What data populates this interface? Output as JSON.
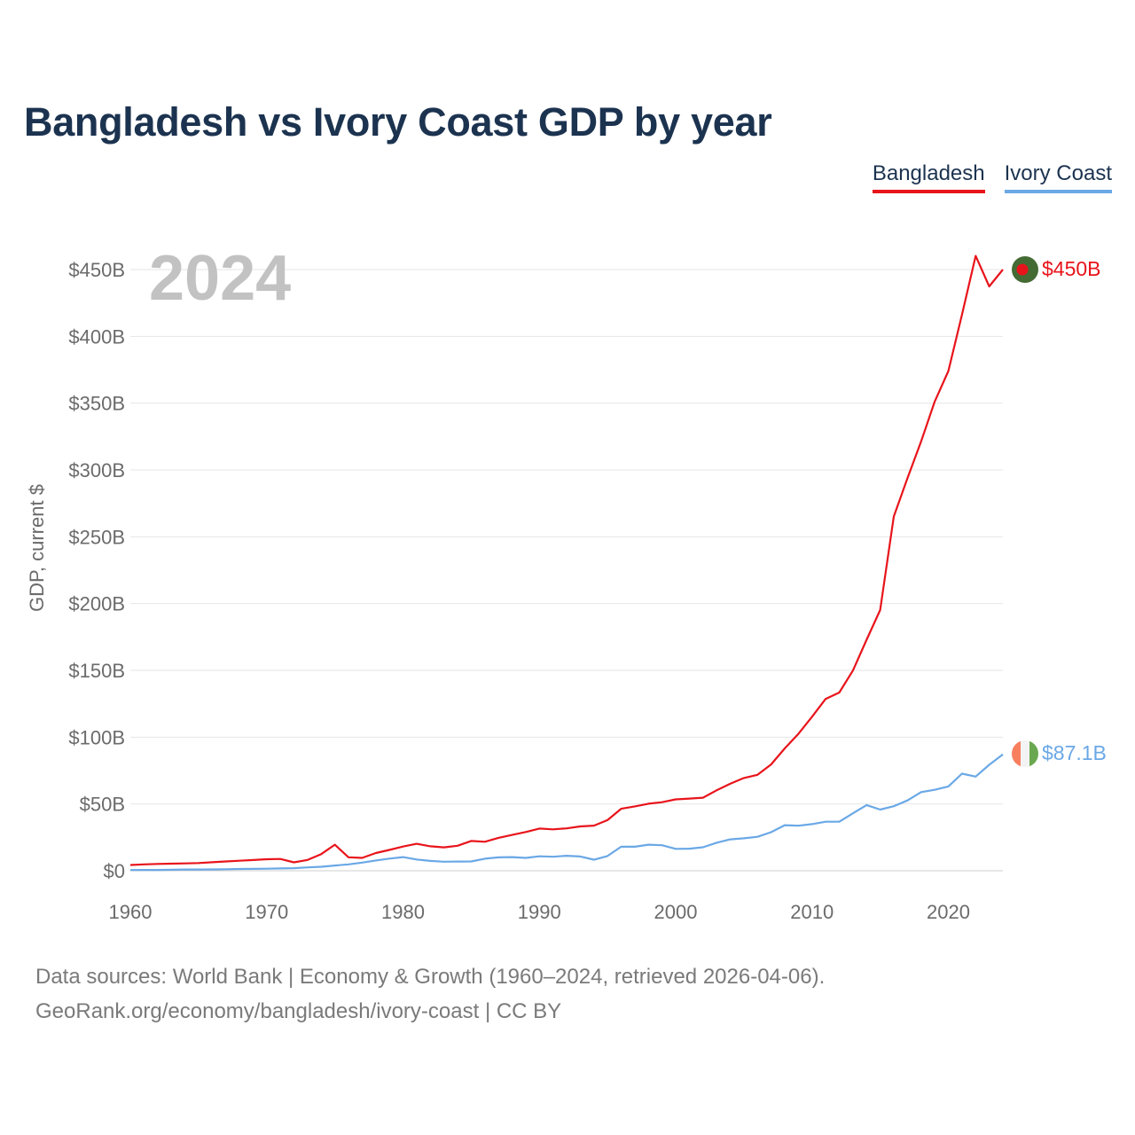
{
  "title": "Bangladesh vs Ivory Coast GDP by year",
  "legend": [
    {
      "name": "Bangladesh",
      "color": "#e8141b"
    },
    {
      "name": "Ivory Coast",
      "color": "#6aa8e6"
    }
  ],
  "year_label": "2024",
  "source": {
    "line1": "Data sources: World Bank | Economy & Growth (1960–2024, retrieved 2026-04-06).",
    "line2": "GeoRank.org/economy/bangladesh/ivory-coast | CC BY"
  },
  "chart_data": {
    "type": "line",
    "title": "Bangladesh vs Ivory Coast GDP by year",
    "xlabel": "",
    "ylabel": "GDP, current $",
    "xlim": [
      1960,
      2024
    ],
    "ylim": [
      0,
      450
    ],
    "xticks": [
      1960,
      1970,
      1980,
      1990,
      2000,
      2010,
      2020
    ],
    "yticks": [
      {
        "value": 0,
        "label": "$0"
      },
      {
        "value": 50,
        "label": "$50B"
      },
      {
        "value": 100,
        "label": "$100B"
      },
      {
        "value": 150,
        "label": "$150B"
      },
      {
        "value": 200,
        "label": "$200B"
      },
      {
        "value": 250,
        "label": "$250B"
      },
      {
        "value": 300,
        "label": "$300B"
      },
      {
        "value": 350,
        "label": "$350B"
      },
      {
        "value": 400,
        "label": "$400B"
      },
      {
        "value": 450,
        "label": "$450B"
      }
    ],
    "x": [
      1960,
      1961,
      1962,
      1963,
      1964,
      1965,
      1966,
      1967,
      1968,
      1969,
      1970,
      1971,
      1972,
      1973,
      1974,
      1975,
      1976,
      1977,
      1978,
      1979,
      1980,
      1981,
      1982,
      1983,
      1984,
      1985,
      1986,
      1987,
      1988,
      1989,
      1990,
      1991,
      1992,
      1993,
      1994,
      1995,
      1996,
      1997,
      1998,
      1999,
      2000,
      2001,
      2002,
      2003,
      2004,
      2005,
      2006,
      2007,
      2008,
      2009,
      2010,
      2011,
      2012,
      2013,
      2014,
      2015,
      2016,
      2017,
      2018,
      2019,
      2020,
      2021,
      2022,
      2023,
      2024
    ],
    "series": [
      {
        "name": "Bangladesh",
        "color": "#e8141b",
        "end_label": "$450B",
        "values": [
          4.3,
          4.8,
          5.1,
          5.3,
          5.5,
          5.8,
          6.4,
          7.0,
          7.5,
          8.0,
          8.6,
          8.8,
          6.3,
          8.1,
          12.5,
          19.5,
          10.1,
          9.6,
          13.3,
          15.6,
          18.1,
          20.2,
          18.3,
          17.5,
          18.7,
          22.3,
          21.7,
          24.6,
          26.8,
          29.0,
          31.6,
          31.0,
          31.7,
          33.2,
          33.8,
          37.9,
          46.4,
          48.2,
          50.2,
          51.3,
          53.4,
          54.0,
          54.7,
          60.2,
          65.1,
          69.4,
          71.8,
          79.6,
          91.6,
          102.5,
          115.3,
          128.6,
          133.4,
          149.9,
          172.9,
          195.1,
          265.2,
          293.8,
          321.4,
          351.2,
          374.0,
          416.3,
          460.2,
          437.4,
          450.0
        ]
      },
      {
        "name": "Ivory Coast",
        "color": "#6aa8e6",
        "end_label": "$87.1B",
        "values": [
          0.5,
          0.6,
          0.6,
          0.7,
          0.9,
          0.9,
          1.0,
          1.1,
          1.3,
          1.4,
          1.5,
          1.7,
          1.9,
          2.5,
          3.0,
          3.9,
          4.8,
          6.1,
          7.7,
          9.1,
          10.2,
          8.4,
          7.4,
          6.8,
          6.9,
          7.0,
          9.0,
          10.0,
          10.2,
          9.6,
          10.8,
          10.5,
          11.2,
          10.7,
          8.3,
          11.0,
          18.0,
          18.0,
          19.5,
          19.1,
          16.4,
          16.5,
          17.6,
          21.0,
          23.5,
          24.3,
          25.4,
          28.9,
          34.1,
          33.7,
          34.9,
          36.7,
          36.7,
          43.0,
          49.2,
          45.8,
          48.3,
          52.6,
          58.9,
          60.6,
          63.1,
          72.7,
          70.5,
          79.3,
          87.1
        ]
      }
    ]
  }
}
